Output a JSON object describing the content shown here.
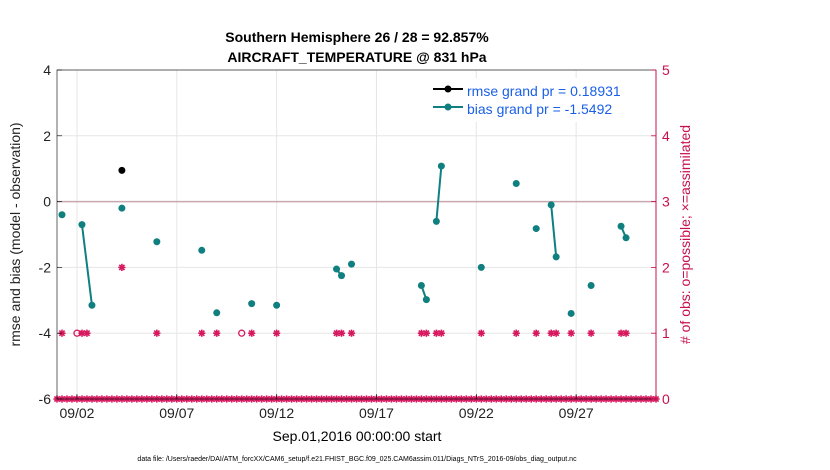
{
  "chart_data": {
    "type": "line",
    "title": "Southern Hemisphere 26 / 28 = 92.857%",
    "subtitle": "AIRCRAFT_TEMPERATURE @ 831 hPa",
    "xlabel": "Sep.01,2016 00:00:00 start",
    "ylabel_left": "rmse and bias (model - observation)",
    "ylabel_right": "# of obs: o=possible; ×=assimilated",
    "footer": "data file: /Users/raeder/DAI/ATM_forcXX/CAM6_setup/f.e21.FHIST_BGC.f09_025.CAM6assim.011/Diags_NTrS_2016-09/obs_diag_output.nc",
    "xlim": [
      1,
      31
    ],
    "ylim_left": [
      -6,
      4
    ],
    "ylim_right": [
      0,
      5
    ],
    "x_ticks": [
      2,
      7,
      12,
      17,
      22,
      27
    ],
    "x_tick_labels": [
      "09/02",
      "09/07",
      "09/12",
      "09/17",
      "09/22",
      "09/27"
    ],
    "y_left_ticks": [
      -6,
      -4,
      -2,
      0,
      2,
      4
    ],
    "y_left_tick_labels": [
      "-6",
      "-4",
      "-2",
      "0",
      "2",
      "4"
    ],
    "y_right_ticks": [
      0,
      1,
      2,
      3,
      4,
      5
    ],
    "y_right_tick_labels": [
      "0",
      "1",
      "2",
      "3",
      "4",
      "5"
    ],
    "grid": true,
    "legend_position": "top-right",
    "zero_line": 0,
    "series": [
      {
        "name": "rmse grand pr = 0.18931",
        "color": "#000000",
        "axis": "left",
        "segments": [
          [
            [
              4.25,
              0.95
            ]
          ]
        ]
      },
      {
        "name": "bias grand pr = -1.5492",
        "color": "#0f7f7f",
        "axis": "left",
        "segments": [
          [
            [
              1.25,
              -0.4
            ]
          ],
          [
            [
              2.25,
              -0.7
            ],
            [
              2.75,
              -3.15
            ]
          ],
          [
            [
              4.25,
              -0.2
            ]
          ],
          [
            [
              6.0,
              -1.22
            ]
          ],
          [
            [
              8.25,
              -1.48
            ]
          ],
          [
            [
              9.0,
              -3.38
            ]
          ],
          [
            [
              10.75,
              -3.1
            ]
          ],
          [
            [
              12.0,
              -3.15
            ]
          ],
          [
            [
              15.0,
              -2.05
            ],
            [
              15.25,
              -2.25
            ]
          ],
          [
            [
              15.75,
              -1.9
            ]
          ],
          [
            [
              19.25,
              -2.55
            ],
            [
              19.5,
              -2.98
            ]
          ],
          [
            [
              20.0,
              -0.6
            ],
            [
              20.25,
              1.08
            ]
          ],
          [
            [
              22.25,
              -2.0
            ]
          ],
          [
            [
              24.0,
              0.55
            ]
          ],
          [
            [
              25.0,
              -0.82
            ]
          ],
          [
            [
              25.75,
              -0.1
            ],
            [
              26.0,
              -1.68
            ]
          ],
          [
            [
              26.75,
              -3.4
            ]
          ],
          [
            [
              27.75,
              -2.55
            ]
          ],
          [
            [
              29.25,
              -0.75
            ],
            [
              29.5,
              -1.1
            ]
          ]
        ]
      }
    ],
    "obs_assimilated": [
      {
        "x": 1.25,
        "y": 1
      },
      {
        "x": 2.25,
        "y": 1
      },
      {
        "x": 2.5,
        "y": 1
      },
      {
        "x": 4.25,
        "y": 2
      },
      {
        "x": 6.0,
        "y": 1
      },
      {
        "x": 8.25,
        "y": 1
      },
      {
        "x": 9.0,
        "y": 1
      },
      {
        "x": 10.75,
        "y": 1
      },
      {
        "x": 12.0,
        "y": 1
      },
      {
        "x": 15.0,
        "y": 1
      },
      {
        "x": 15.25,
        "y": 1
      },
      {
        "x": 15.75,
        "y": 1
      },
      {
        "x": 19.25,
        "y": 1
      },
      {
        "x": 19.5,
        "y": 1
      },
      {
        "x": 20.0,
        "y": 1
      },
      {
        "x": 20.25,
        "y": 1
      },
      {
        "x": 22.25,
        "y": 1
      },
      {
        "x": 24.0,
        "y": 1
      },
      {
        "x": 25.0,
        "y": 1
      },
      {
        "x": 25.75,
        "y": 1
      },
      {
        "x": 26.0,
        "y": 1
      },
      {
        "x": 26.75,
        "y": 1
      },
      {
        "x": 27.75,
        "y": 1
      },
      {
        "x": 29.25,
        "y": 1
      },
      {
        "x": 29.5,
        "y": 1
      }
    ],
    "obs_possible": [
      {
        "x": 2.0,
        "y": 1
      },
      {
        "x": 10.25,
        "y": 1
      }
    ],
    "baseline_markers_start": 1.0,
    "baseline_markers_end": 31.0,
    "baseline_markers_step": 0.25,
    "colors": {
      "rmse": "#000000",
      "bias": "#0f7f7f",
      "obs": "#d6195f",
      "right_axis": "#c8104e",
      "grid": "#e6e6e6",
      "zero_line": "#c8a7ae",
      "legend_text": "#1a5fe8"
    }
  }
}
